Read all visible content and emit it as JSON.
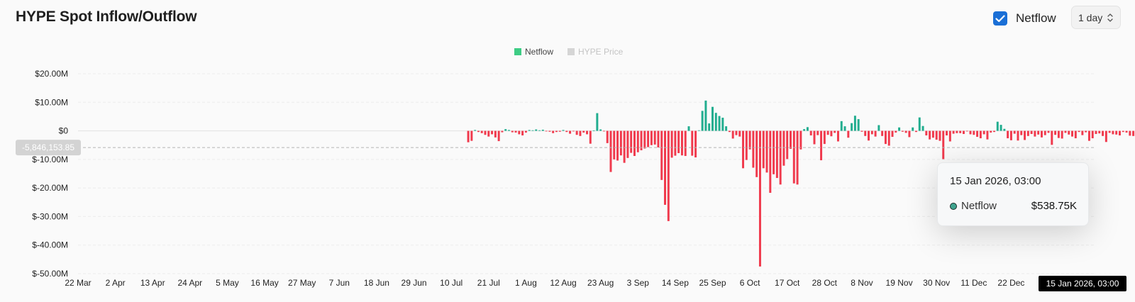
{
  "title": "HYPE Spot Inflow/Outflow",
  "toolbar": {
    "netflow_checkbox": {
      "label": "Netflow",
      "checked": true
    },
    "interval": {
      "value": "1 day"
    }
  },
  "tooltip": {
    "date": "15 Jan 2026, 03:00",
    "series": "Netflow",
    "value": "$538.75K"
  },
  "crosshair": {
    "x_label": "15 Jan 2026, 03:00",
    "y_label": "-5,846,153.85",
    "y_value": -5846153.85
  },
  "colors": {
    "positive": "#21ad8f",
    "negative": "#f03a4d",
    "legend_netflow": "#3dcc84",
    "legend_price": "#d5d5d5",
    "checkbox": "#1a6fd6"
  },
  "chart_data": {
    "type": "bar",
    "legend": [
      {
        "name": "Netflow",
        "active": true
      },
      {
        "name": "HYPE Price",
        "active": false
      }
    ],
    "legend_placement": "top-center",
    "y_axis": {
      "ylim": [
        -50000000,
        20000000
      ],
      "ticks": [
        20000000,
        10000000,
        0,
        -10000000,
        -20000000,
        -30000000,
        -40000000,
        -50000000
      ],
      "tick_labels": [
        "$20.00M",
        "$10.00M",
        "$0",
        "$-10.00M",
        "$-20.00M",
        "$-30.00M",
        "$-40.00M",
        "$-50.00M"
      ]
    },
    "x_axis": {
      "range": [
        "2025-03-22",
        "2026-01-16"
      ],
      "ticks": [
        "2025-03-22",
        "2025-04-02",
        "2025-04-13",
        "2025-04-24",
        "2025-05-05",
        "2025-05-16",
        "2025-05-27",
        "2025-06-07",
        "2025-06-18",
        "2025-06-29",
        "2025-07-10",
        "2025-07-21",
        "2025-08-01",
        "2025-08-12",
        "2025-08-23",
        "2025-09-03",
        "2025-09-14",
        "2025-09-25",
        "2025-10-06",
        "2025-10-17",
        "2025-10-28",
        "2025-11-08",
        "2025-11-19",
        "2025-11-30",
        "2025-12-11",
        "2025-12-22"
      ],
      "tick_labels": [
        "22 Mar",
        "2 Apr",
        "13 Apr",
        "24 Apr",
        "5 May",
        "16 May",
        "27 May",
        "7 Jun",
        "18 Jun",
        "29 Jun",
        "10 Jul",
        "21 Jul",
        "1 Aug",
        "12 Aug",
        "23 Aug",
        "3 Sep",
        "14 Sep",
        "25 Sep",
        "6 Oct",
        "17 Oct",
        "28 Oct",
        "8 Nov",
        "19 Nov",
        "30 Nov",
        "11 Dec",
        "22 Dec"
      ]
    },
    "grid": true,
    "series": [
      {
        "name": "Netflow",
        "start_date": "2025-07-15",
        "interval": "1 day",
        "values": [
          -4000000,
          -3500000,
          300000,
          -400000,
          -800000,
          -1400000,
          -2000000,
          -1200000,
          -2300000,
          -3600000,
          -500000,
          600000,
          300000,
          -500000,
          -600000,
          -1200000,
          -1600000,
          -600000,
          300000,
          200000,
          500000,
          200000,
          400000,
          -200000,
          -300000,
          -800000,
          -400000,
          -300000,
          300000,
          -400000,
          -1000000,
          -200000,
          -1400000,
          -1800000,
          -600000,
          -1200000,
          -4500000,
          100000,
          6200000,
          500000,
          -200000,
          -4300000,
          -14400000,
          -10000000,
          -10400000,
          -8600000,
          -11200000,
          -9500000,
          -7700000,
          -8800000,
          -7500000,
          -6800000,
          -6200000,
          -5700000,
          -5000000,
          -4800000,
          -5800000,
          -17200000,
          -25900000,
          -31600000,
          -9400000,
          -8700000,
          -7800000,
          -8600000,
          -8800000,
          1600000,
          -8700000,
          -9300000,
          200000,
          7000000,
          10600000,
          2600000,
          8400000,
          6300000,
          5200000,
          4600000,
          1600000,
          -400000,
          -2700000,
          -1500000,
          -2000000,
          -13100000,
          -10200000,
          -6500000,
          -12900000,
          -16200000,
          -47500000,
          -13100000,
          -14600000,
          -21700000,
          -15200000,
          -16500000,
          -18800000,
          -12200000,
          -9900000,
          -6300000,
          -18400000,
          -18800000,
          -6500000,
          600000,
          1300000,
          -1600000,
          -4700000,
          -1500000,
          -10300000,
          -4600000,
          -1400000,
          -1900000,
          -700000,
          -3700000,
          3400000,
          1600000,
          -2400000,
          2700000,
          5300000,
          4100000,
          -300000,
          -1800000,
          -3400000,
          -1200000,
          -2000000,
          2000000,
          -1800000,
          -4600000,
          -5200000,
          -2100000,
          -600000,
          1200000,
          -300000,
          -700000,
          -2200000,
          1200000,
          -400000,
          4700000,
          1700000,
          -1600000,
          -3000000,
          -2400000,
          -3100000,
          -3500000,
          -9900000,
          -1600000,
          -3700000,
          -1000000,
          -800000,
          -800000,
          -1100000,
          -200000,
          -1200000,
          -1400000,
          -2100000,
          -2600000,
          -1200000,
          -3000000,
          -600000,
          -400000,
          3200000,
          2100000,
          700000,
          -2600000,
          -3300000,
          -1000000,
          -3400000,
          -1500000,
          -3200000,
          -1800000,
          -1100000,
          -2000000,
          -1300000,
          -2300000,
          -1500000,
          -700000,
          -4900000,
          -1400000,
          -2500000,
          -2700000,
          -700000,
          -1300000,
          -2000000,
          -2600000,
          -400000,
          -1500000,
          -500000,
          -3500000,
          -2600000,
          -1100000,
          -900000,
          -1800000,
          -3900000,
          -700000,
          -1200000,
          -1300000,
          -1600000,
          -400000,
          -600000,
          -1700000,
          -1800000,
          -1300000,
          -800000,
          -1200000,
          -1600000,
          -1100000,
          -800000,
          -600000,
          -1500000,
          -200000,
          -1200000,
          1300000,
          900000,
          500000,
          -800000,
          1300000,
          -3800000,
          -2800000,
          700000,
          1600000,
          2700000,
          1700000,
          1200000,
          2500000,
          1100000,
          -1600000,
          538750
        ]
      }
    ]
  }
}
